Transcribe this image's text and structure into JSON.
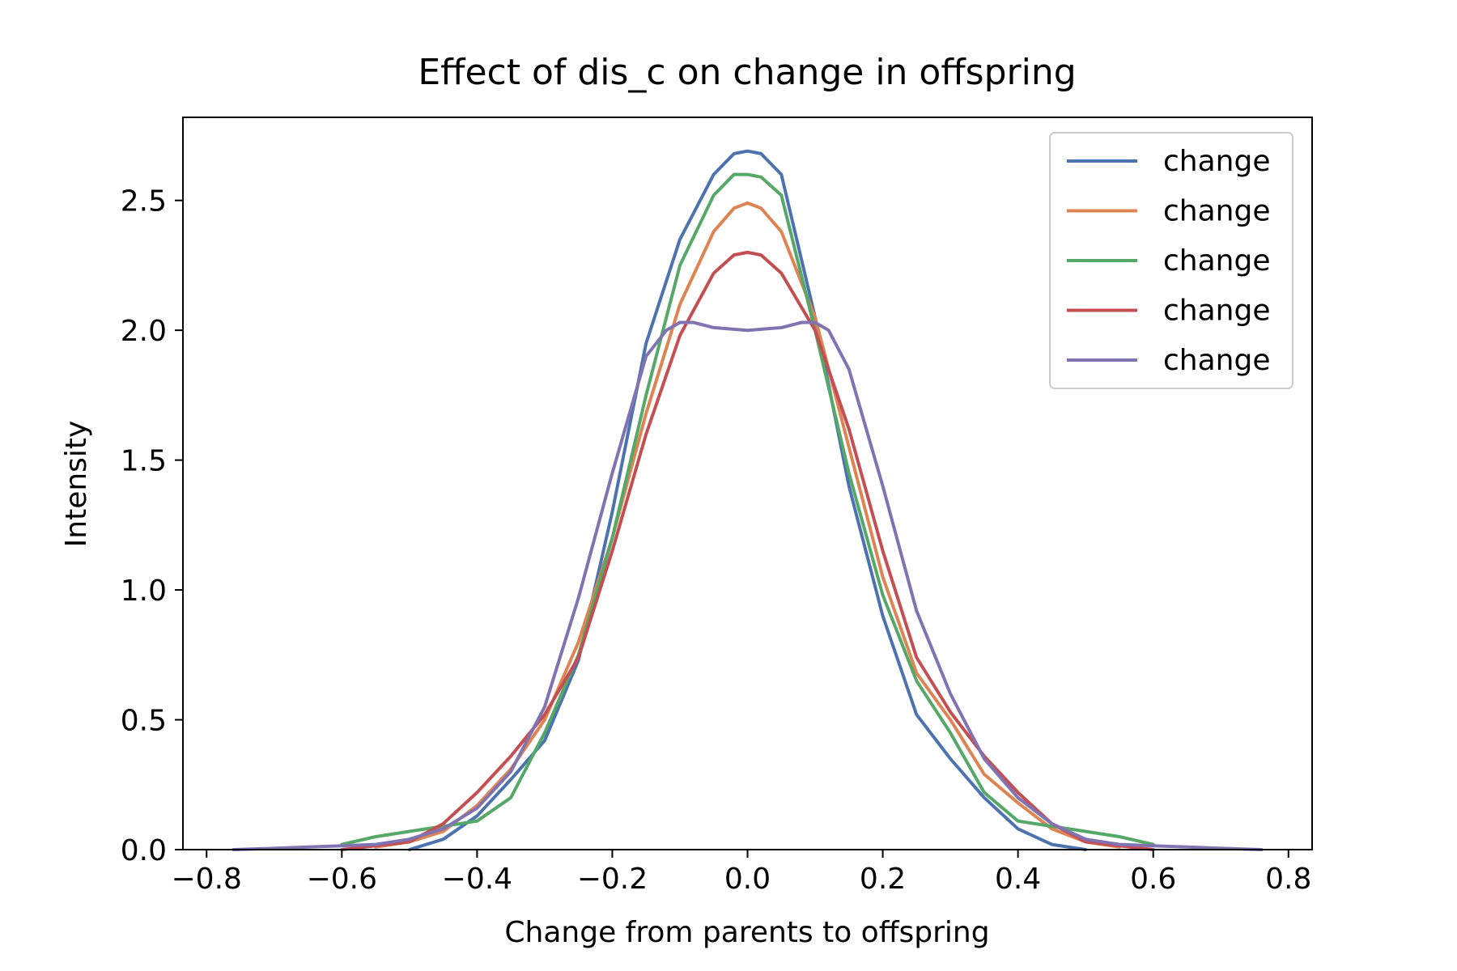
{
  "chart_data": {
    "type": "line",
    "title": "Effect of dis_c on change in offspring",
    "xlabel": "Change from parents to offspring",
    "ylabel": "Intensity",
    "xlim": [
      -0.835,
      0.835
    ],
    "ylim": [
      0.0,
      2.82
    ],
    "xticks": [
      -0.8,
      -0.6,
      -0.4,
      -0.2,
      0.0,
      0.2,
      0.4,
      0.6,
      0.8
    ],
    "xtick_labels": [
      "−0.8",
      "−0.6",
      "−0.4",
      "−0.2",
      "0.0",
      "0.2",
      "0.4",
      "0.6",
      "0.8"
    ],
    "yticks": [
      0.0,
      0.5,
      1.0,
      1.5,
      2.0,
      2.5
    ],
    "ytick_labels": [
      "0.0",
      "0.5",
      "1.0",
      "1.5",
      "2.0",
      "2.5"
    ],
    "grid": false,
    "legend_position": "top-right",
    "series": [
      {
        "name": "change",
        "color": "#4c72b0",
        "x": [
          -0.5,
          -0.45,
          -0.4,
          -0.35,
          -0.3,
          -0.25,
          -0.2,
          -0.15,
          -0.1,
          -0.05,
          -0.02,
          0.0,
          0.02,
          0.05,
          0.1,
          0.15,
          0.2,
          0.25,
          0.3,
          0.35,
          0.4,
          0.45,
          0.5
        ],
        "y": [
          0.0,
          0.04,
          0.13,
          0.27,
          0.42,
          0.73,
          1.3,
          1.95,
          2.35,
          2.6,
          2.68,
          2.69,
          2.68,
          2.6,
          2.05,
          1.4,
          0.9,
          0.52,
          0.35,
          0.2,
          0.08,
          0.02,
          0.0
        ]
      },
      {
        "name": "change",
        "color": "#dd8452",
        "x": [
          -0.55,
          -0.5,
          -0.45,
          -0.4,
          -0.35,
          -0.3,
          -0.25,
          -0.2,
          -0.15,
          -0.1,
          -0.05,
          -0.02,
          0.0,
          0.02,
          0.05,
          0.1,
          0.15,
          0.2,
          0.25,
          0.3,
          0.35,
          0.4,
          0.45,
          0.5,
          0.55
        ],
        "y": [
          0.01,
          0.03,
          0.07,
          0.17,
          0.31,
          0.5,
          0.8,
          1.2,
          1.68,
          2.1,
          2.38,
          2.47,
          2.49,
          2.47,
          2.38,
          2.05,
          1.55,
          1.05,
          0.68,
          0.5,
          0.29,
          0.18,
          0.08,
          0.03,
          0.01
        ]
      },
      {
        "name": "change",
        "color": "#55a868",
        "x": [
          -0.6,
          -0.55,
          -0.5,
          -0.45,
          -0.4,
          -0.35,
          -0.3,
          -0.25,
          -0.2,
          -0.15,
          -0.1,
          -0.05,
          -0.02,
          0.0,
          0.02,
          0.05,
          0.1,
          0.15,
          0.2,
          0.25,
          0.3,
          0.35,
          0.4,
          0.45,
          0.5,
          0.55,
          0.6
        ],
        "y": [
          0.02,
          0.05,
          0.07,
          0.09,
          0.11,
          0.2,
          0.45,
          0.75,
          1.2,
          1.75,
          2.25,
          2.52,
          2.6,
          2.6,
          2.59,
          2.52,
          2.0,
          1.45,
          0.98,
          0.65,
          0.45,
          0.22,
          0.11,
          0.09,
          0.07,
          0.05,
          0.02
        ]
      },
      {
        "name": "change",
        "color": "#c44e52",
        "x": [
          -0.6,
          -0.5,
          -0.45,
          -0.4,
          -0.35,
          -0.3,
          -0.25,
          -0.2,
          -0.15,
          -0.1,
          -0.05,
          -0.02,
          0.0,
          0.02,
          0.05,
          0.1,
          0.15,
          0.2,
          0.25,
          0.3,
          0.35,
          0.4,
          0.45,
          0.5,
          0.6
        ],
        "y": [
          0.0,
          0.03,
          0.1,
          0.22,
          0.36,
          0.52,
          0.74,
          1.15,
          1.6,
          1.98,
          2.22,
          2.29,
          2.3,
          2.29,
          2.22,
          2.0,
          1.62,
          1.15,
          0.74,
          0.53,
          0.36,
          0.22,
          0.1,
          0.03,
          0.0
        ]
      },
      {
        "name": "change",
        "color": "#8172b2",
        "x": [
          -0.76,
          -0.7,
          -0.65,
          -0.6,
          -0.55,
          -0.5,
          -0.45,
          -0.4,
          -0.35,
          -0.3,
          -0.25,
          -0.2,
          -0.15,
          -0.12,
          -0.1,
          -0.08,
          -0.05,
          0.0,
          0.05,
          0.08,
          0.1,
          0.12,
          0.15,
          0.2,
          0.25,
          0.3,
          0.35,
          0.4,
          0.45,
          0.5,
          0.55,
          0.6,
          0.65,
          0.7,
          0.76
        ],
        "y": [
          0.0,
          0.005,
          0.01,
          0.015,
          0.02,
          0.04,
          0.08,
          0.16,
          0.3,
          0.55,
          0.97,
          1.45,
          1.9,
          2.0,
          2.03,
          2.03,
          2.01,
          2.0,
          2.01,
          2.03,
          2.03,
          2.0,
          1.85,
          1.4,
          0.92,
          0.6,
          0.35,
          0.2,
          0.1,
          0.04,
          0.02,
          0.015,
          0.01,
          0.005,
          0.0
        ]
      }
    ]
  }
}
